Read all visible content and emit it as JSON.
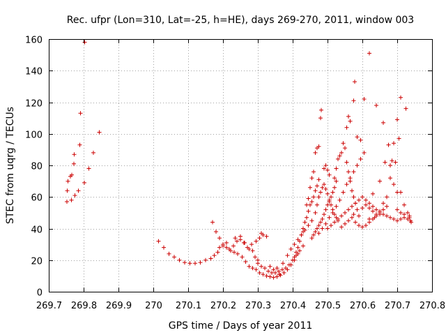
{
  "chart_data": {
    "type": "scatter",
    "title": "Rec. ufpr (Lon=310, Lat=-25, h=HE), days 269-270, 2011, window 003",
    "xlabel": "GPS time / Days of year 2011",
    "ylabel": "STEC from uqrg / TECUs",
    "xlim": [
      269.7,
      270.8
    ],
    "ylim": [
      0,
      160
    ],
    "xticks": [
      269.7,
      269.8,
      269.9,
      270,
      270.1,
      270.2,
      270.3,
      270.4,
      270.5,
      270.6,
      270.7,
      270.8
    ],
    "xtick_labels": [
      "269.7",
      "269.8",
      "269.9",
      "270",
      "270.1",
      "270.2",
      "270.3",
      "270.4",
      "270.5",
      "270.6",
      "270.7",
      "270.8"
    ],
    "yticks": [
      0,
      20,
      40,
      60,
      80,
      100,
      120,
      140,
      160
    ],
    "ytick_labels": [
      "0",
      "20",
      "40",
      "60",
      "80",
      "100",
      "120",
      "140",
      "160"
    ],
    "grid": true,
    "marker": "plus",
    "color": "#cc0000",
    "series": [
      {
        "points": [
          [
            269.752,
            57
          ],
          [
            269.753,
            64
          ],
          [
            269.755,
            70
          ],
          [
            269.762,
            73
          ],
          [
            269.765,
            58
          ],
          [
            269.766,
            74
          ],
          [
            269.772,
            81
          ],
          [
            269.773,
            87
          ],
          [
            269.775,
            61
          ],
          [
            269.785,
            64
          ],
          [
            269.789,
            93
          ],
          [
            269.791,
            113
          ],
          [
            269.802,
            69
          ],
          [
            269.803,
            158
          ],
          [
            269.815,
            78
          ],
          [
            269.828,
            88
          ],
          [
            269.845,
            101
          ],
          [
            270.015,
            32
          ],
          [
            270.03,
            28
          ],
          [
            270.045,
            24
          ],
          [
            270.06,
            22
          ],
          [
            270.075,
            20
          ],
          [
            270.09,
            18.5
          ],
          [
            270.105,
            18
          ],
          [
            270.12,
            18
          ],
          [
            270.135,
            18.5
          ],
          [
            270.15,
            20
          ],
          [
            270.165,
            21
          ],
          [
            270.175,
            23
          ],
          [
            270.185,
            25
          ],
          [
            270.19,
            28
          ],
          [
            270.2,
            30
          ],
          [
            270.21,
            31
          ],
          [
            270.218,
            27
          ],
          [
            270.23,
            29
          ],
          [
            270.24,
            32
          ],
          [
            270.25,
            33
          ],
          [
            270.26,
            31
          ],
          [
            270.27,
            28
          ],
          [
            270.282,
            30
          ],
          [
            270.295,
            32
          ],
          [
            270.305,
            34
          ],
          [
            270.315,
            36
          ],
          [
            270.17,
            44
          ],
          [
            270.18,
            38
          ],
          [
            270.19,
            34
          ],
          [
            270.2,
            29
          ],
          [
            270.21,
            28
          ],
          [
            270.222,
            26
          ],
          [
            270.232,
            25
          ],
          [
            270.242,
            24
          ],
          [
            270.255,
            22
          ],
          [
            270.265,
            19
          ],
          [
            270.275,
            16
          ],
          [
            270.285,
            15
          ],
          [
            270.295,
            14
          ],
          [
            270.305,
            12
          ],
          [
            270.315,
            11
          ],
          [
            270.325,
            10
          ],
          [
            270.335,
            9.5
          ],
          [
            270.345,
            9
          ],
          [
            270.355,
            9.5
          ],
          [
            270.365,
            10.5
          ],
          [
            270.375,
            12
          ],
          [
            270.385,
            14
          ],
          [
            270.395,
            17
          ],
          [
            270.405,
            20
          ],
          [
            270.415,
            24
          ],
          [
            270.235,
            34
          ],
          [
            270.25,
            35
          ],
          [
            270.262,
            31
          ],
          [
            270.275,
            27
          ],
          [
            270.285,
            26
          ],
          [
            270.292,
            22
          ],
          [
            270.3,
            18
          ],
          [
            270.31,
            16
          ],
          [
            270.32,
            15
          ],
          [
            270.33,
            13
          ],
          [
            270.34,
            12
          ],
          [
            270.35,
            12
          ],
          [
            270.36,
            13
          ],
          [
            270.37,
            14
          ],
          [
            270.38,
            15
          ],
          [
            270.39,
            17
          ],
          [
            270.4,
            20
          ],
          [
            270.41,
            23
          ],
          [
            270.42,
            26
          ],
          [
            270.43,
            29
          ],
          [
            270.3,
            20
          ],
          [
            270.31,
            37
          ],
          [
            270.325,
            35
          ],
          [
            270.335,
            16
          ],
          [
            270.345,
            14
          ],
          [
            270.355,
            15
          ],
          [
            270.362,
            11
          ],
          [
            270.372,
            18
          ],
          [
            270.385,
            23
          ],
          [
            270.395,
            27
          ],
          [
            270.405,
            30
          ],
          [
            270.415,
            33
          ],
          [
            270.425,
            36
          ],
          [
            270.435,
            39
          ],
          [
            270.445,
            42
          ],
          [
            270.405,
            22
          ],
          [
            270.41,
            25
          ],
          [
            270.415,
            28
          ],
          [
            270.42,
            32
          ],
          [
            270.425,
            36
          ],
          [
            270.43,
            40
          ],
          [
            270.435,
            44
          ],
          [
            270.44,
            47
          ],
          [
            270.445,
            51
          ],
          [
            270.45,
            55
          ],
          [
            270.455,
            57
          ],
          [
            270.46,
            60
          ],
          [
            270.465,
            64
          ],
          [
            270.47,
            67
          ],
          [
            270.475,
            71
          ],
          [
            270.43,
            38
          ],
          [
            270.44,
            55
          ],
          [
            270.445,
            59
          ],
          [
            270.45,
            66
          ],
          [
            270.455,
            72
          ],
          [
            270.46,
            76
          ],
          [
            270.465,
            88
          ],
          [
            270.47,
            91
          ],
          [
            270.475,
            92
          ],
          [
            270.48,
            110
          ],
          [
            270.482,
            115
          ],
          [
            270.49,
            78
          ],
          [
            270.495,
            80
          ],
          [
            270.5,
            77
          ],
          [
            270.505,
            74
          ],
          [
            270.455,
            34
          ],
          [
            270.46,
            36
          ],
          [
            270.465,
            38
          ],
          [
            270.47,
            40
          ],
          [
            270.475,
            42
          ],
          [
            270.48,
            44
          ],
          [
            270.485,
            46
          ],
          [
            270.49,
            49
          ],
          [
            270.495,
            52
          ],
          [
            270.5,
            55
          ],
          [
            270.505,
            57
          ],
          [
            270.51,
            60
          ],
          [
            270.515,
            63
          ],
          [
            270.52,
            66
          ],
          [
            270.525,
            70
          ],
          [
            270.455,
            45
          ],
          [
            270.465,
            50
          ],
          [
            270.47,
            55
          ],
          [
            270.475,
            60
          ],
          [
            270.48,
            63
          ],
          [
            270.485,
            66
          ],
          [
            270.49,
            68
          ],
          [
            270.495,
            65
          ],
          [
            270.5,
            62
          ],
          [
            270.505,
            58
          ],
          [
            270.51,
            55
          ],
          [
            270.515,
            52
          ],
          [
            270.52,
            49
          ],
          [
            270.525,
            47
          ],
          [
            270.53,
            45
          ],
          [
            270.475,
            37
          ],
          [
            270.485,
            40
          ],
          [
            270.495,
            43
          ],
          [
            270.505,
            47
          ],
          [
            270.515,
            50
          ],
          [
            270.525,
            54
          ],
          [
            270.535,
            58
          ],
          [
            270.545,
            63
          ],
          [
            270.555,
            68
          ],
          [
            270.565,
            72
          ],
          [
            270.575,
            76
          ],
          [
            270.585,
            80
          ],
          [
            270.595,
            84
          ],
          [
            270.605,
            88
          ],
          [
            270.5,
            40
          ],
          [
            270.51,
            42
          ],
          [
            270.52,
            44
          ],
          [
            270.53,
            46
          ],
          [
            270.54,
            48
          ],
          [
            270.55,
            50
          ],
          [
            270.56,
            52
          ],
          [
            270.57,
            54
          ],
          [
            270.58,
            56
          ],
          [
            270.59,
            58
          ],
          [
            270.6,
            60
          ],
          [
            270.61,
            58
          ],
          [
            270.62,
            56
          ],
          [
            270.63,
            54
          ],
          [
            270.64,
            52
          ],
          [
            270.52,
            72
          ],
          [
            270.525,
            78
          ],
          [
            270.53,
            84
          ],
          [
            270.535,
            86
          ],
          [
            270.54,
            88
          ],
          [
            270.545,
            94
          ],
          [
            270.55,
            91
          ],
          [
            270.555,
            82
          ],
          [
            270.56,
            76
          ],
          [
            270.565,
            70
          ],
          [
            270.57,
            64
          ],
          [
            270.575,
            60
          ],
          [
            270.58,
            56
          ],
          [
            270.585,
            52
          ],
          [
            270.59,
            48
          ],
          [
            270.54,
            41
          ],
          [
            270.55,
            43
          ],
          [
            270.56,
            45
          ],
          [
            270.57,
            47
          ],
          [
            270.575,
            49
          ],
          [
            270.58,
            44
          ],
          [
            270.59,
            42
          ],
          [
            270.6,
            41
          ],
          [
            270.61,
            42
          ],
          [
            270.62,
            44
          ],
          [
            270.63,
            46
          ],
          [
            270.64,
            48
          ],
          [
            270.65,
            50
          ],
          [
            270.66,
            52
          ],
          [
            270.67,
            54
          ],
          [
            270.555,
            104
          ],
          [
            270.56,
            111
          ],
          [
            270.565,
            108
          ],
          [
            270.575,
            121
          ],
          [
            270.578,
            133
          ],
          [
            270.585,
            98
          ],
          [
            270.595,
            96
          ],
          [
            270.605,
            122
          ],
          [
            270.62,
            151
          ],
          [
            270.63,
            62
          ],
          [
            270.64,
            118
          ],
          [
            270.65,
            70
          ],
          [
            270.66,
            107
          ],
          [
            270.665,
            82
          ],
          [
            270.675,
            93
          ],
          [
            270.6,
            53
          ],
          [
            270.61,
            55
          ],
          [
            270.62,
            53
          ],
          [
            270.63,
            51
          ],
          [
            270.64,
            49
          ],
          [
            270.65,
            51
          ],
          [
            270.66,
            56
          ],
          [
            270.67,
            60
          ],
          [
            270.68,
            80
          ],
          [
            270.685,
            83
          ],
          [
            270.69,
            94
          ],
          [
            270.695,
            82
          ],
          [
            270.7,
            109
          ],
          [
            270.705,
            97
          ],
          [
            270.71,
            123
          ],
          [
            270.62,
            46
          ],
          [
            270.635,
            47
          ],
          [
            270.65,
            49
          ],
          [
            270.66,
            49
          ],
          [
            270.67,
            48
          ],
          [
            270.68,
            47
          ],
          [
            270.69,
            46
          ],
          [
            270.7,
            45
          ],
          [
            270.71,
            46
          ],
          [
            270.72,
            47
          ],
          [
            270.68,
            72
          ],
          [
            270.69,
            68
          ],
          [
            270.7,
            63
          ],
          [
            270.71,
            63
          ],
          [
            270.72,
            55
          ],
          [
            270.725,
            116
          ],
          [
            270.73,
            50
          ],
          [
            270.735,
            48
          ],
          [
            270.738,
            45
          ],
          [
            270.74,
            44
          ],
          [
            270.7,
            52
          ],
          [
            270.71,
            50
          ],
          [
            270.72,
            49
          ],
          [
            270.73,
            46
          ],
          [
            270.735,
            47
          ]
        ]
      }
    ]
  }
}
